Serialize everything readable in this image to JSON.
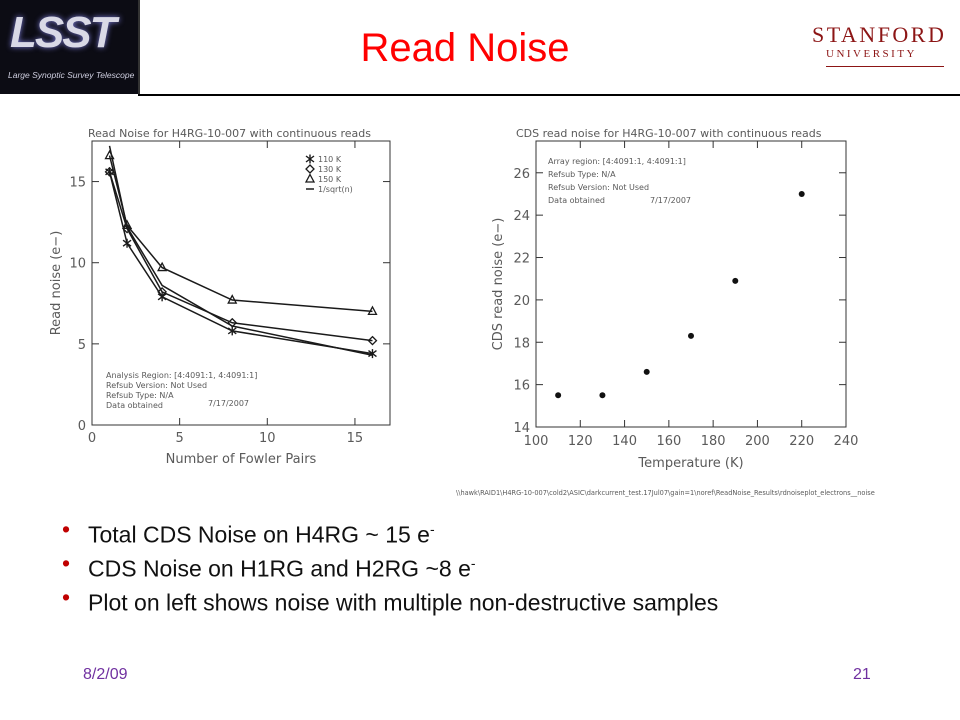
{
  "slide": {
    "title": "Read Noise",
    "logo": {
      "text": "LSST",
      "subtitle": "Large Synoptic Survey Telescope"
    },
    "stanford_line1": "STANFORD",
    "stanford_line2": "UNIVERSITY",
    "bullets": [
      {
        "text": "Total CDS Noise on H4RG ~ 15 e",
        "sup": "-"
      },
      {
        "text": "CDS Noise on H1RG and H2RG ~8 e",
        "sup": "-"
      },
      {
        "text": "Plot on left shows noise with multiple non-destructive samples",
        "sup": ""
      }
    ],
    "footer_date": "8/2/09",
    "page_number": "21",
    "file_path": "\\\\hawk\\RAID1\\H4RG-10-007\\cold2\\ASIC\\darkcurrent_test.17Jul07\\gain=1\\noref\\ReadNoise_Results\\rdnoiseplot_electrons__noise"
  },
  "chart_data": [
    {
      "type": "line",
      "title": "Read Noise for H4RG-10-007 with continuous reads",
      "xlabel": "Number of Fowler Pairs",
      "ylabel": "Read noise (e−)",
      "xlim": [
        0,
        17
      ],
      "ylim": [
        0,
        17.5
      ],
      "xticks": [
        0,
        5,
        10,
        15
      ],
      "yticks": [
        0,
        5,
        10,
        15
      ],
      "x": [
        1,
        2,
        4,
        8,
        16
      ],
      "series": [
        {
          "name": "110 K",
          "marker": "asterisk",
          "values": [
            15.6,
            11.2,
            7.9,
            5.8,
            4.4
          ]
        },
        {
          "name": "130 K",
          "marker": "diamond",
          "values": [
            15.6,
            12.1,
            8.2,
            6.3,
            5.2
          ]
        },
        {
          "name": "150 K",
          "marker": "triangle",
          "values": [
            16.6,
            12.3,
            9.7,
            7.7,
            7.0
          ]
        },
        {
          "name": "1/sqrt(n)",
          "marker": "none",
          "values": [
            17.2,
            12.2,
            8.6,
            6.1,
            4.3
          ]
        }
      ],
      "legend_position": "top-right",
      "annotations": [
        "Analysis Region: [4:4091:1, 4:4091:1]",
        "Refsub Version: Not Used",
        "Refsub Type: N/A",
        "Data obtained",
        "7/17/2007"
      ]
    },
    {
      "type": "scatter",
      "title": "CDS read noise for H4RG-10-007 with continuous reads",
      "xlabel": "Temperature (K)",
      "ylabel": "CDS read noise (e−)",
      "xlim": [
        100,
        240
      ],
      "ylim": [
        14,
        27.5
      ],
      "xticks": [
        100,
        120,
        140,
        160,
        180,
        200,
        220,
        240
      ],
      "yticks": [
        14,
        16,
        18,
        20,
        22,
        24,
        26
      ],
      "x": [
        110,
        130,
        150,
        170,
        190,
        220
      ],
      "values": [
        15.5,
        15.5,
        16.6,
        18.3,
        20.9,
        25.0
      ],
      "annotations": [
        "Array region: [4:4091:1, 4:4091:1]",
        "Refsub Type: N/A",
        "Refsub Version: Not Used",
        "Data obtained",
        "7/17/2007"
      ]
    }
  ]
}
